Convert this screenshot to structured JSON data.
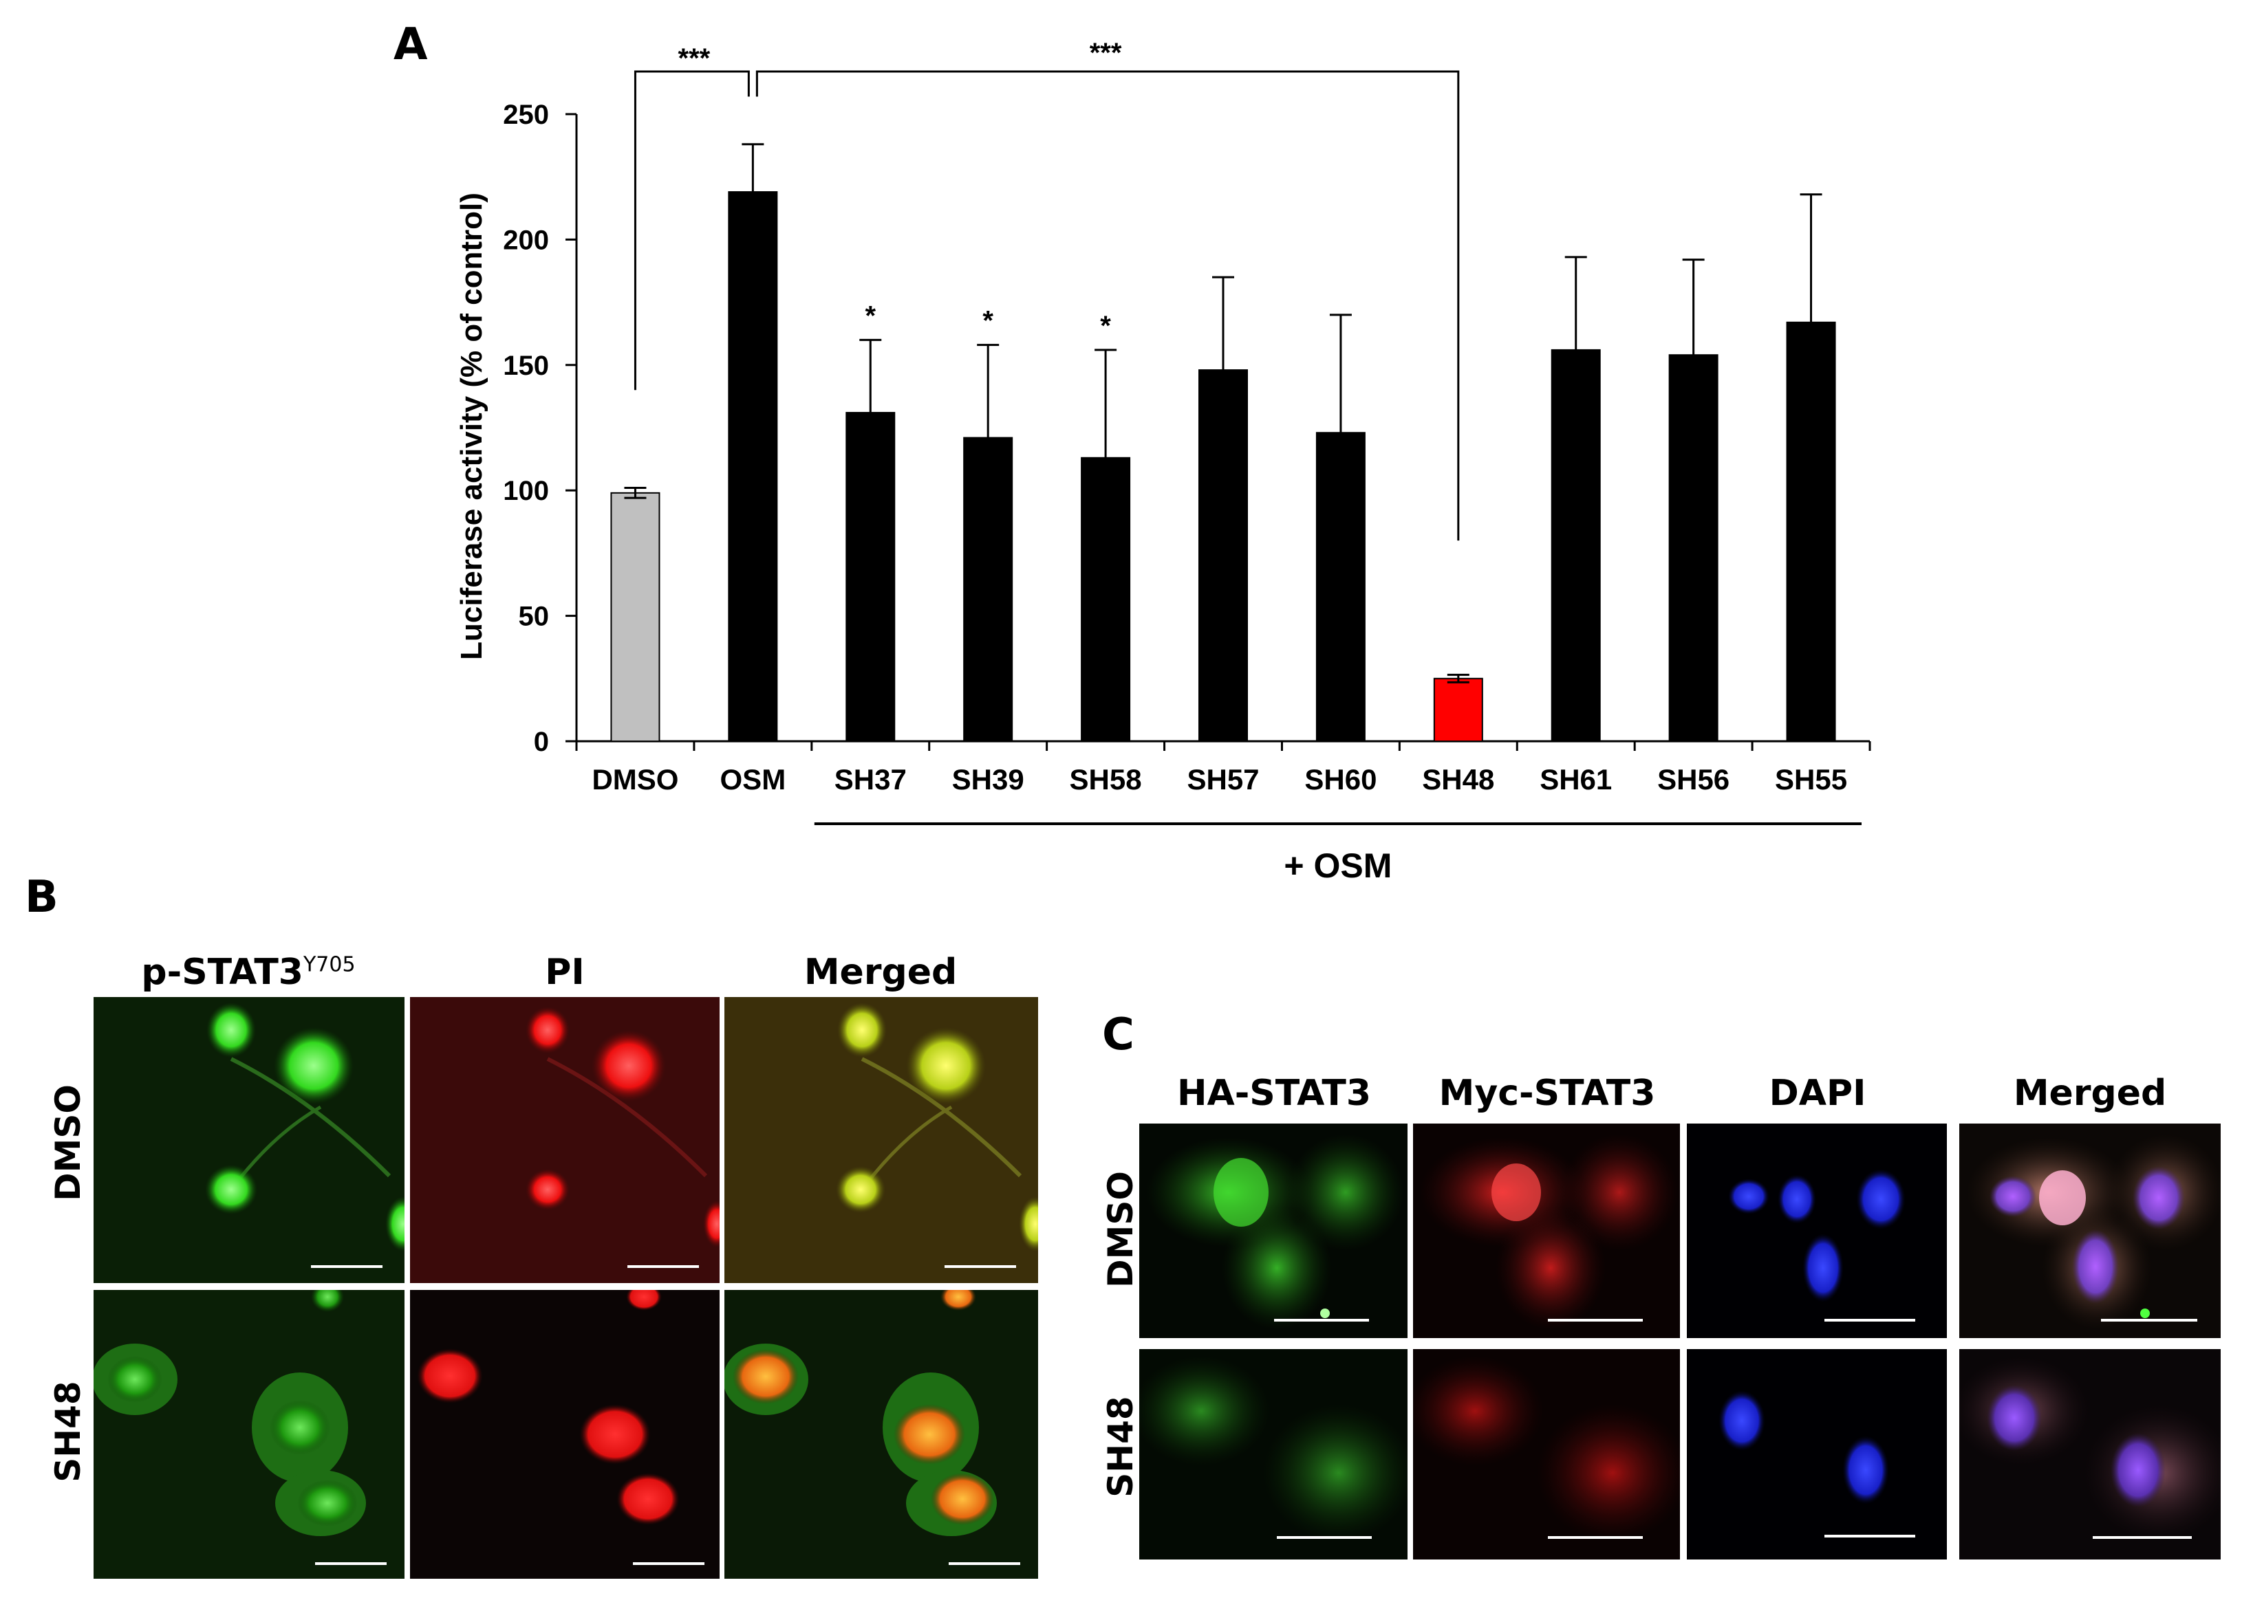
{
  "panels": {
    "a": "A",
    "b": "B",
    "c": "C"
  },
  "chart_data": {
    "type": "bar",
    "ylabel": "Luciferase activity (% of control)",
    "ylim": [
      0,
      250
    ],
    "yticks": [
      0,
      50,
      100,
      150,
      200,
      250
    ],
    "categories": [
      "DMSO",
      "OSM",
      "SH37",
      "SH39",
      "SH58",
      "SH57",
      "SH60",
      "SH48",
      "SH61",
      "SH56",
      "SH55"
    ],
    "values": [
      99,
      219,
      131,
      121,
      113,
      148,
      123,
      25,
      156,
      154,
      167
    ],
    "errors": [
      2,
      19,
      29,
      37,
      43,
      37,
      47,
      1.5,
      37,
      38,
      51
    ],
    "colors": [
      "#c0c0c0",
      "#000000",
      "#000000",
      "#000000",
      "#000000",
      "#000000",
      "#000000",
      "#ff0000",
      "#000000",
      "#000000",
      "#000000"
    ],
    "significance": [
      "",
      "",
      "*",
      "*",
      "*",
      "",
      "",
      "",
      "",
      "",
      ""
    ],
    "brackets": [
      {
        "from": "DMSO",
        "to": "OSM",
        "label": "***"
      },
      {
        "from": "OSM",
        "to": "SH48",
        "label": "***"
      }
    ],
    "group_label": "+ OSM",
    "group_from": "SH37",
    "group_to": "SH55"
  },
  "panel_b": {
    "columns": [
      "p-STAT3",
      "PI",
      "Merged"
    ],
    "column0_superscript": "Y705",
    "rows": [
      "DMSO",
      "SH48"
    ]
  },
  "panel_c": {
    "columns": [
      "HA-STAT3",
      "Myc-STAT3",
      "DAPI",
      "Merged"
    ],
    "rows": [
      "DMSO",
      "SH48"
    ]
  }
}
